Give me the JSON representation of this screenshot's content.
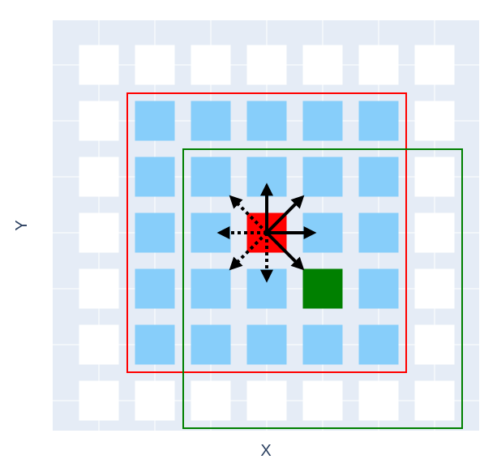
{
  "axes": {
    "xlabel": "X",
    "ylabel": "Y"
  },
  "colors": {
    "plot_bg": "#e5ecf6",
    "gridline": "#ffffff",
    "empty_cell": "#ffffff",
    "neighborhood_cell": "#87cefa",
    "agent_cell": "#ff0000",
    "target_cell": "#008000",
    "red_box": "#ff0000",
    "green_box": "#008000",
    "arrow": "#000000",
    "axis_text": "#2a3f5f"
  },
  "grid": {
    "columns": 7,
    "rows": 7,
    "agent": {
      "col": 3,
      "row": 3
    },
    "target": {
      "col": 4,
      "row": 4
    },
    "neighborhood": {
      "col_start": 1,
      "col_end": 5,
      "row_start": 1,
      "row_end": 5
    },
    "red_box": {
      "col_start": 1,
      "col_end": 5,
      "row_start": 1,
      "row_end": 5
    },
    "green_box": {
      "col_start": 2,
      "col_end": 6,
      "row_start": 2,
      "row_end": 6
    }
  },
  "arrows": [
    {
      "direction": "up",
      "dx": 0,
      "dy": -1,
      "style": "solid"
    },
    {
      "direction": "up-right",
      "dx": 1,
      "dy": -1,
      "style": "solid"
    },
    {
      "direction": "right",
      "dx": 1,
      "dy": 0,
      "style": "solid"
    },
    {
      "direction": "down-right",
      "dx": 1,
      "dy": 1,
      "style": "solid"
    },
    {
      "direction": "down",
      "dx": 0,
      "dy": 1,
      "style": "dotted"
    },
    {
      "direction": "down-left",
      "dx": -1,
      "dy": 1,
      "style": "dotted"
    },
    {
      "direction": "left",
      "dx": -1,
      "dy": 0,
      "style": "dotted"
    },
    {
      "direction": "up-left",
      "dx": -1,
      "dy": -1,
      "style": "dotted"
    }
  ]
}
